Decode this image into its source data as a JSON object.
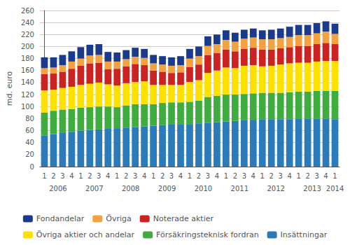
{
  "chart_data": {
    "type": "bar",
    "stacked": true,
    "ylabel": "md. euro",
    "categories": [
      "1",
      "2",
      "3",
      "4",
      "1",
      "2",
      "3",
      "4",
      "1",
      "2",
      "3",
      "4",
      "1",
      "2",
      "3",
      "4",
      "1",
      "2",
      "3",
      "4",
      "1",
      "2",
      "3",
      "4",
      "1",
      "2",
      "3",
      "4",
      "1",
      "2",
      "3",
      "4",
      "1"
    ],
    "annotations": [
      "2006",
      "2007",
      "2008",
      "2009",
      "2010",
      "2011",
      "2012",
      "2013",
      "2014"
    ],
    "series": [
      {
        "name": "Insättningar",
        "color": "#2b7bba",
        "values": [
          52,
          54,
          56,
          58,
          60,
          61,
          62,
          63,
          64,
          65,
          66,
          67,
          68,
          69,
          70,
          70,
          70,
          72,
          73,
          74,
          75,
          76,
          77,
          78,
          79,
          79,
          79,
          79,
          80,
          80,
          80,
          80,
          79
        ]
      },
      {
        "name": "Försäkringsteknisk fordran",
        "color": "#3fac3f",
        "values": [
          38,
          39,
          39,
          38,
          38,
          38,
          38,
          37,
          35,
          37,
          38,
          37,
          36,
          37,
          37,
          37,
          38,
          38,
          43,
          44,
          45,
          44,
          44,
          44,
          44,
          44,
          44,
          45,
          45,
          45,
          46,
          46,
          47
        ]
      },
      {
        "name": "Övriga aktier och andelar",
        "color": "#ffe100",
        "values": [
          37,
          35,
          36,
          37,
          38,
          39,
          40,
          37,
          36,
          37,
          37,
          38,
          32,
          30,
          29,
          29,
          33,
          34,
          40,
          42,
          45,
          44,
          47,
          47,
          44,
          45,
          47,
          48,
          48,
          48,
          49,
          50,
          50
        ]
      },
      {
        "name": "Noterade aktier",
        "color": "#cc2222",
        "values": [
          27,
          27,
          27,
          30,
          32,
          34,
          33,
          25,
          28,
          28,
          30,
          27,
          24,
          22,
          20,
          21,
          25,
          26,
          30,
          29,
          30,
          28,
          28,
          29,
          28,
          27,
          27,
          27,
          28,
          28,
          29,
          30,
          28
        ]
      },
      {
        "name": "Övriga",
        "color": "#f4a140",
        "values": [
          10,
          10,
          11,
          12,
          12,
          13,
          13,
          13,
          12,
          12,
          12,
          12,
          12,
          12,
          12,
          12,
          14,
          14,
          15,
          15,
          16,
          16,
          17,
          17,
          17,
          17,
          17,
          17,
          18,
          18,
          18,
          19,
          17
        ]
      },
      {
        "name": "Fondandelar",
        "color": "#1a3a8c",
        "values": [
          18,
          17,
          17,
          17,
          19,
          18,
          18,
          16,
          15,
          15,
          15,
          15,
          14,
          14,
          14,
          15,
          16,
          16,
          16,
          16,
          16,
          15,
          15,
          15,
          15,
          16,
          16,
          17,
          17,
          17,
          17,
          17,
          17
        ]
      }
    ],
    "ylim": [
      0,
      260
    ],
    "yticks": [
      0,
      20,
      40,
      60,
      80,
      100,
      120,
      140,
      160,
      180,
      200,
      220,
      240,
      260
    ],
    "grid": true,
    "legend": "bottom"
  }
}
